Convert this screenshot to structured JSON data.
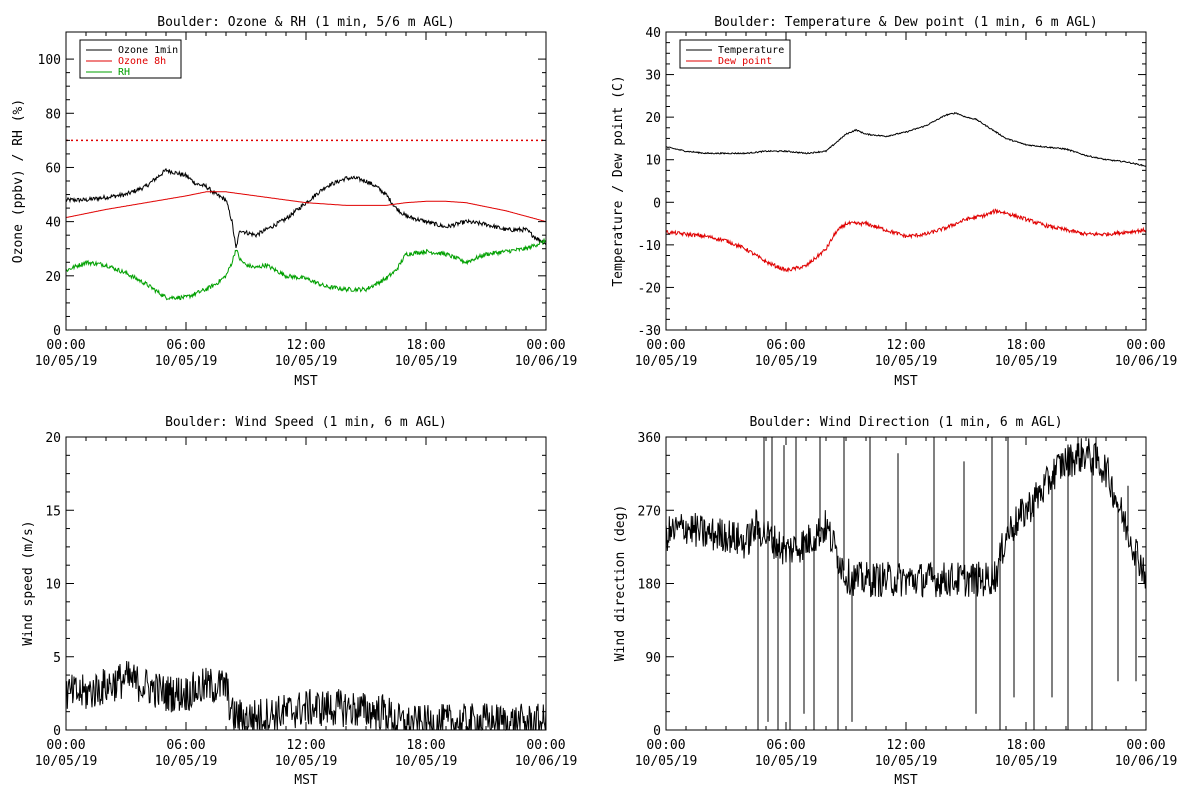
{
  "colors": {
    "black": "#000000",
    "red": "#e00000",
    "green": "#00a000"
  },
  "x_ticks": [
    {
      "time": "00:00",
      "date": "10/05/19"
    },
    {
      "time": "06:00",
      "date": "10/05/19"
    },
    {
      "time": "12:00",
      "date": "10/05/19"
    },
    {
      "time": "18:00",
      "date": "10/05/19"
    },
    {
      "time": "00:00",
      "date": "10/06/19"
    }
  ],
  "chart_data": [
    {
      "type": "line",
      "title": "Boulder: Ozone & RH (1 min, 5/6 m AGL)",
      "xlabel": "MST",
      "ylabel": "Ozone (ppbv) / RH (%)",
      "xlim": [
        0,
        24
      ],
      "ylim": [
        0,
        110
      ],
      "yticks": [
        0,
        20,
        40,
        60,
        80,
        100
      ],
      "reference_line": {
        "y": 70,
        "color": "#e00000",
        "style": "dotted"
      },
      "legend_position": "top-left",
      "series": [
        {
          "name": "Ozone 1min",
          "color": "#000000",
          "noise": 0.8,
          "x": [
            0,
            1,
            2,
            3,
            4,
            4.5,
            5,
            5.5,
            6,
            6.5,
            7,
            7.5,
            8,
            8.3,
            8.5,
            8.7,
            9,
            9.5,
            10,
            11,
            12,
            13,
            14,
            14.5,
            15,
            15.5,
            16,
            16.5,
            17,
            18,
            19,
            20,
            21,
            22,
            23,
            23.5,
            24
          ],
          "y": [
            48,
            48,
            49,
            50,
            53,
            56,
            59,
            58,
            57,
            54,
            53,
            50,
            48,
            40,
            30,
            37,
            36,
            35,
            37,
            41,
            47,
            53,
            56,
            56,
            55,
            53,
            50,
            45,
            42,
            40,
            38,
            40,
            39,
            37,
            37,
            34,
            32
          ]
        },
        {
          "name": "Ozone 8h",
          "color": "#e00000",
          "noise": 0,
          "x": [
            0,
            2,
            4,
            6,
            7,
            8,
            9,
            10,
            12,
            14,
            16,
            17,
            18,
            19,
            20,
            22,
            24
          ],
          "y": [
            41.5,
            44.5,
            47,
            49.5,
            51,
            51,
            50,
            49,
            47,
            46,
            46,
            47,
            47.5,
            47.5,
            47,
            44,
            40
          ]
        },
        {
          "name": "RH",
          "color": "#00a000",
          "noise": 0.8,
          "x": [
            0,
            1,
            2,
            3,
            4,
            5,
            6,
            7,
            7.5,
            8,
            8.3,
            8.5,
            8.7,
            9,
            9.5,
            10,
            11,
            12,
            13,
            14,
            15,
            16,
            16.5,
            17,
            18,
            19,
            20,
            21,
            22,
            23,
            24
          ],
          "y": [
            22,
            25,
            24,
            21,
            17,
            12,
            12,
            15,
            17,
            20,
            25,
            30,
            26,
            24,
            23,
            24,
            20,
            19,
            16,
            15,
            15,
            19,
            22,
            28,
            29,
            28,
            25,
            28,
            29,
            30,
            33
          ]
        }
      ]
    },
    {
      "type": "line",
      "title": "Boulder: Temperature & Dew point (1 min, 6 m AGL)",
      "xlabel": "MST",
      "ylabel": "Temperature / Dew point (C)",
      "xlim": [
        0,
        24
      ],
      "ylim": [
        -30,
        40
      ],
      "yticks": [
        -30,
        -20,
        -10,
        0,
        10,
        20,
        30,
        40
      ],
      "legend_position": "top-left",
      "series": [
        {
          "name": "Temperature",
          "color": "#000000",
          "noise": 0.15,
          "x": [
            0,
            1,
            2,
            3,
            4,
            5,
            6,
            7,
            8,
            8.5,
            9,
            9.5,
            10,
            11,
            12,
            13,
            14,
            14.5,
            15,
            15.5,
            16,
            17,
            18,
            19,
            20,
            21,
            22,
            23,
            24
          ],
          "y": [
            13,
            12,
            11.5,
            11.5,
            11.5,
            12,
            12,
            11.5,
            12,
            14,
            16,
            17,
            16,
            15.5,
            16.5,
            18,
            20.5,
            21,
            20,
            19.5,
            18,
            15,
            13.5,
            13,
            12.5,
            11,
            10,
            9.5,
            8.5
          ]
        },
        {
          "name": "Dew point",
          "color": "#e00000",
          "noise": 0.45,
          "x": [
            0,
            1,
            2,
            3,
            4,
            5,
            6,
            7,
            7.5,
            8,
            8.5,
            9,
            10,
            11,
            12,
            13,
            14,
            15,
            16,
            16.5,
            17,
            18,
            19,
            20,
            21,
            22,
            23,
            24
          ],
          "y": [
            -7,
            -7.5,
            -8,
            -9,
            -11,
            -14,
            -16,
            -15,
            -13,
            -11,
            -7,
            -5,
            -5,
            -6.5,
            -8,
            -7.5,
            -6,
            -4,
            -3,
            -2,
            -2.5,
            -4,
            -5.5,
            -6.5,
            -7.5,
            -7.5,
            -7,
            -6.5
          ]
        }
      ]
    },
    {
      "type": "line",
      "title": "Boulder: Wind Speed (1 min, 6 m AGL)",
      "xlabel": "MST",
      "ylabel": "Wind speed (m/s)",
      "xlim": [
        0,
        24
      ],
      "ylim": [
        0,
        20
      ],
      "yticks": [
        0,
        5,
        10,
        15,
        20
      ],
      "series": [
        {
          "color": "#000000",
          "noise": 1.3,
          "floor": 0,
          "x": [
            0,
            1,
            2,
            3,
            4,
            5,
            6,
            7,
            8,
            8.3,
            9,
            10,
            11,
            12,
            13,
            14,
            15,
            16,
            16.5,
            17,
            18,
            19,
            20,
            21,
            22,
            23,
            24
          ],
          "y": [
            2.5,
            2.5,
            3,
            3.5,
            3,
            2.5,
            2.5,
            3,
            3,
            1,
            0.8,
            1,
            1.2,
            1.5,
            1.5,
            1.5,
            1.3,
            1.2,
            0.6,
            0.4,
            0.4,
            0.5,
            0.5,
            0.6,
            0.5,
            0.5,
            0.5
          ]
        }
      ]
    },
    {
      "type": "line",
      "title": "Boulder: Wind Direction (1 min, 6 m AGL)",
      "xlabel": "MST",
      "ylabel": "Wind direction (deg)",
      "xlim": [
        0,
        24
      ],
      "ylim": [
        0,
        360
      ],
      "yticks": [
        0,
        90,
        180,
        270,
        360
      ],
      "series": [
        {
          "color": "#000000",
          "noise": 22,
          "floor": 0,
          "ceil": 360,
          "x": [
            0,
            1,
            2,
            3,
            4,
            4.5,
            5,
            5.5,
            6,
            7,
            8,
            8.5,
            9,
            9.5,
            10,
            11,
            12,
            13,
            14,
            15,
            16,
            16.5,
            17,
            18,
            19,
            19.5,
            20,
            21,
            22,
            23,
            24
          ],
          "y": [
            240,
            250,
            240,
            240,
            230,
            250,
            240,
            230,
            220,
            230,
            250,
            220,
            190,
            185,
            185,
            185,
            185,
            185,
            185,
            185,
            185,
            190,
            240,
            270,
            300,
            320,
            330,
            340,
            320,
            250,
            190
          ]
        },
        {
          "color": "#000000",
          "spikes": true,
          "x": [
            4.6,
            4.9,
            5.1,
            5.3,
            5.6,
            5.9,
            6.2,
            6.5,
            6.9,
            7.4,
            7.7,
            8.6,
            8.9,
            9.3,
            10.2,
            11.6,
            13.4,
            14.9,
            15.5,
            16.3,
            16.7,
            17.1,
            17.4,
            18.4,
            19.3,
            20.1,
            20.6,
            21.3,
            21.5,
            22.6,
            23.1,
            23.5
          ],
          "y": [
            0,
            360,
            10,
            360,
            0,
            350,
            0,
            360,
            20,
            0,
            360,
            0,
            360,
            10,
            360,
            340,
            360,
            330,
            20,
            360,
            0,
            360,
            40,
            0,
            40,
            0,
            360,
            0,
            360,
            60,
            300,
            60
          ]
        }
      ]
    }
  ]
}
